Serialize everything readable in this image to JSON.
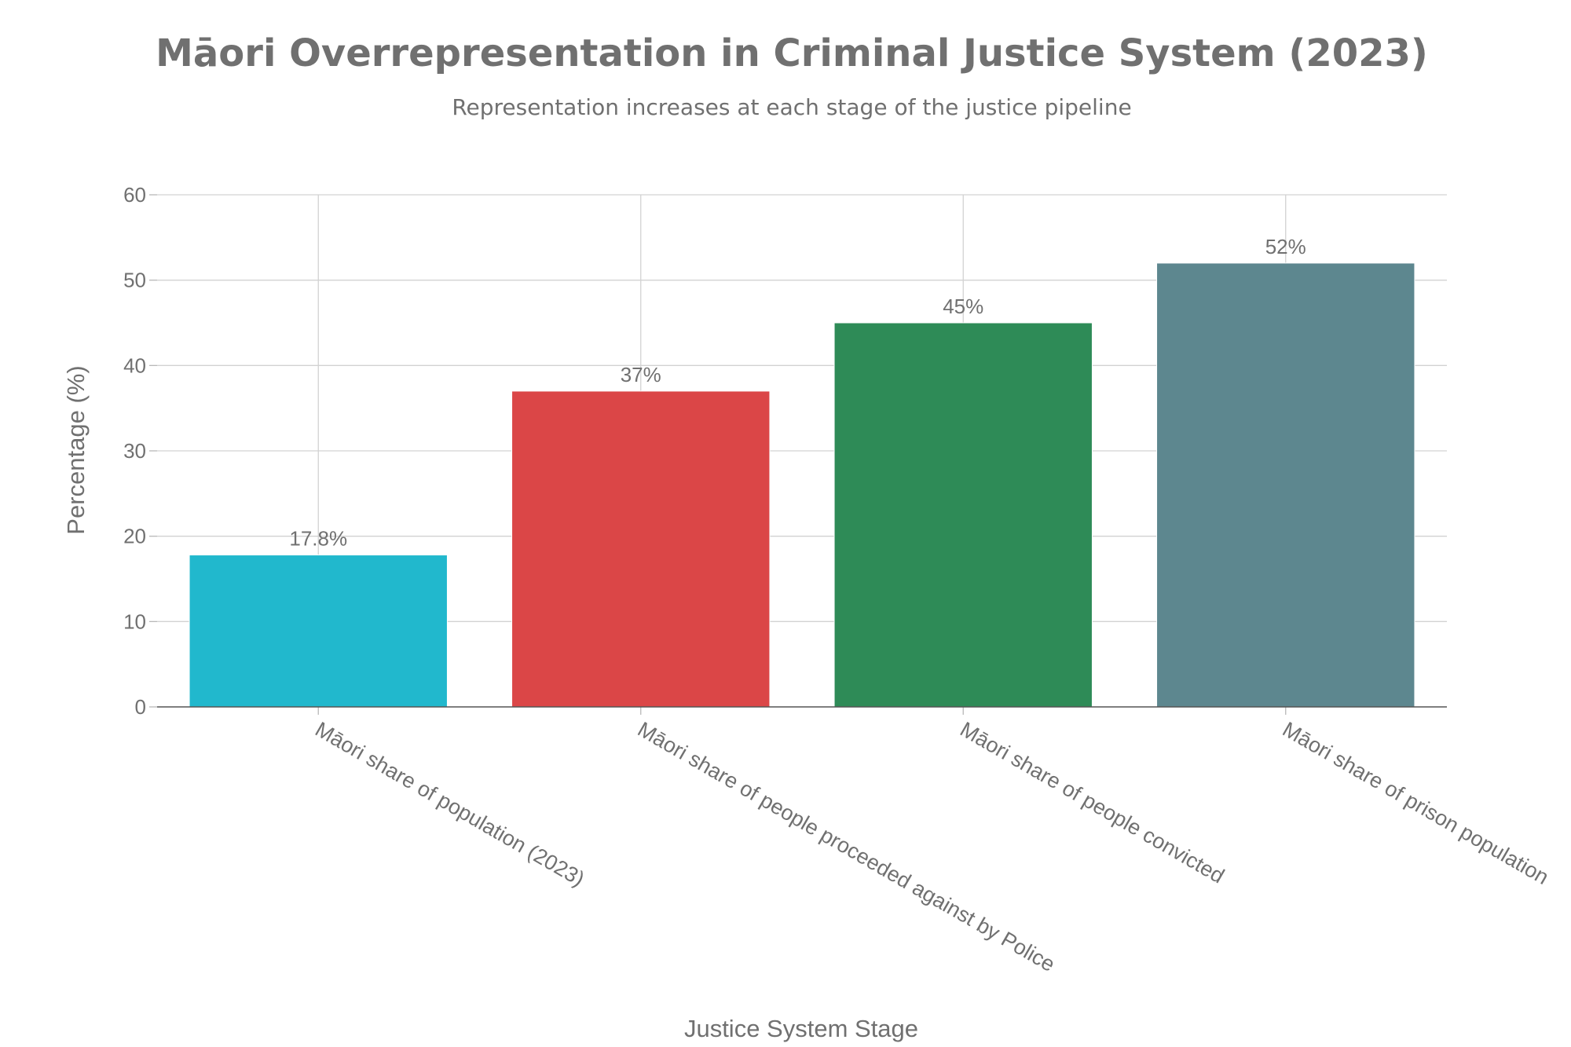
{
  "chart_data": {
    "type": "bar",
    "title": "Māori Overrepresentation in Criminal Justice System (2023)",
    "subtitle": "Representation increases at each stage of the justice pipeline",
    "xlabel": "Justice System Stage",
    "ylabel": "Percentage (%)",
    "ylim": [
      0,
      60
    ],
    "yticks": [
      0,
      10,
      20,
      30,
      40,
      50,
      60
    ],
    "categories": [
      "Māori share of population (2023)",
      "Māori share of people proceeded against by Police",
      "Māori share of people convicted",
      "Māori share of prison population"
    ],
    "values": [
      17.8,
      37,
      45,
      52
    ],
    "data_labels": [
      "17.8%",
      "37%",
      "45%",
      "52%"
    ],
    "colors": [
      "#21B8CD",
      "#DB4647",
      "#2E8B57",
      "#5D878F"
    ],
    "grid": true,
    "legend": "none"
  }
}
